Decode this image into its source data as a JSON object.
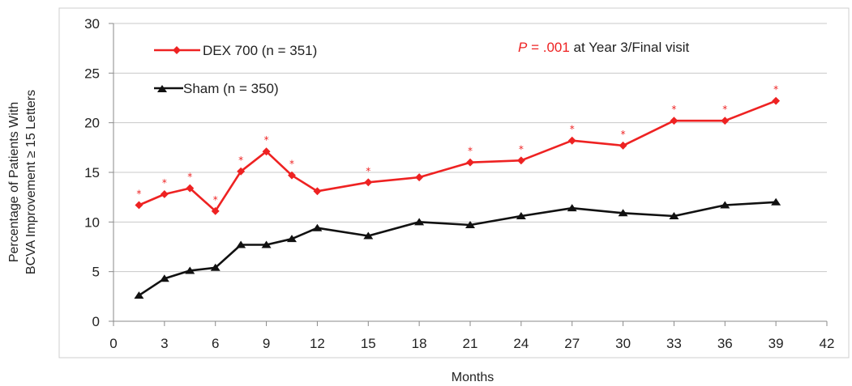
{
  "chart_data": {
    "type": "line",
    "xlabel": "Months",
    "ylabel_lines": [
      "Percentage of Patients With",
      "BCVA Improvement ≥ 15 Letters"
    ],
    "xlim": [
      0,
      42
    ],
    "ylim": [
      0,
      30
    ],
    "xticks": [
      "0",
      "3",
      "6",
      "9",
      "12",
      "15",
      "18",
      "21",
      "24",
      "27",
      "30",
      "33",
      "36",
      "39",
      "42"
    ],
    "yticks": [
      "0",
      "5",
      "10",
      "15",
      "20",
      "25",
      "30"
    ],
    "grid": "horizontal",
    "legend_placement": "top-left",
    "series": [
      {
        "name": "DEX 700 (n = 351)",
        "color": "#ee2222",
        "marker": "diamond",
        "x": [
          1.5,
          3,
          4.5,
          6,
          7.5,
          9,
          10.5,
          12,
          15,
          18,
          21,
          24,
          27,
          30,
          33,
          36,
          39
        ],
        "y": [
          11.7,
          12.8,
          13.4,
          11.1,
          15.1,
          17.1,
          14.7,
          13.1,
          14.0,
          14.5,
          16.0,
          16.2,
          18.2,
          17.7,
          20.2,
          20.2,
          22.2
        ],
        "significance_marker": "*",
        "significant_at": [
          1.5,
          3,
          4.5,
          6,
          7.5,
          9,
          10.5,
          15,
          21,
          24,
          27,
          30,
          33,
          36,
          39
        ]
      },
      {
        "name": "Sham (n = 350)",
        "color": "#111111",
        "marker": "triangle",
        "x": [
          1.5,
          3,
          4.5,
          6,
          7.5,
          9,
          10.5,
          12,
          15,
          18,
          21,
          24,
          27,
          30,
          33,
          36,
          39
        ],
        "y": [
          2.6,
          4.3,
          5.1,
          5.4,
          7.7,
          7.7,
          8.3,
          9.4,
          8.6,
          10.0,
          9.7,
          10.6,
          11.4,
          10.9,
          10.6,
          11.7,
          12.0
        ]
      }
    ],
    "annotation": {
      "p_symbol": "P",
      "p_value": " = .001",
      "rest": " at Year 3/Final visit",
      "highlight_color": "#ee2222"
    }
  }
}
